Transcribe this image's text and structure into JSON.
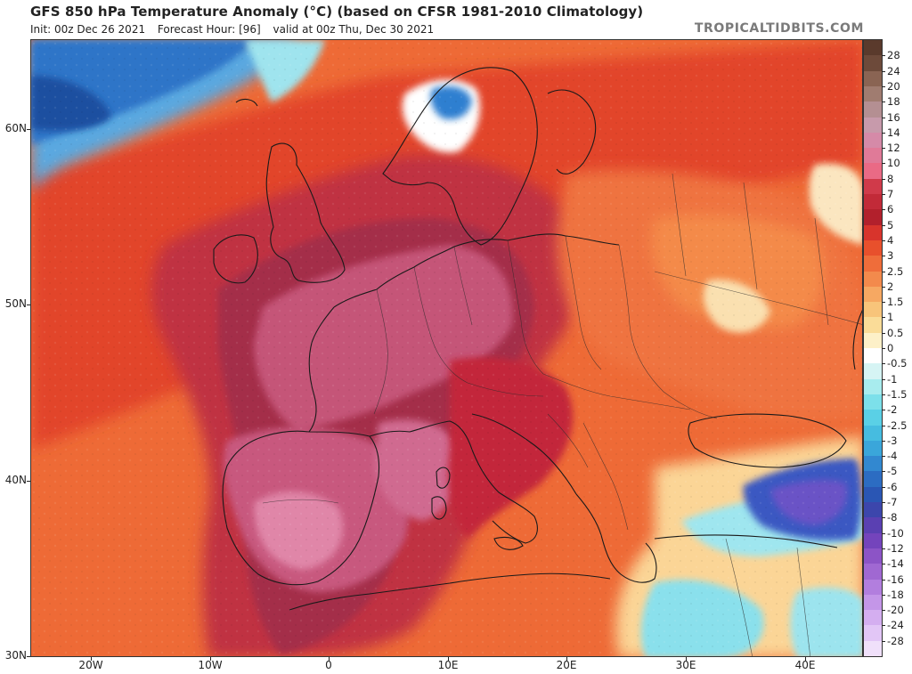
{
  "header": {
    "title": "GFS 850 hPa Temperature Anomaly (°C) (based on CFSR 1981-2010 Climatology)",
    "init": "Init: 00z Dec 26 2021",
    "forecast_hour": "Forecast Hour: [96]",
    "valid": "valid at 00z Thu, Dec 30 2021",
    "brand": "TROPICALTIDBITS.COM"
  },
  "axes": {
    "lat_labels": [
      "60N",
      "50N",
      "40N",
      "30N"
    ],
    "lon_labels": [
      "20W",
      "10W",
      "0",
      "10E",
      "20E",
      "30E",
      "40E"
    ]
  },
  "colorbar": {
    "labels": [
      "28",
      "24",
      "20",
      "18",
      "16",
      "14",
      "12",
      "10",
      "8",
      "7",
      "6",
      "5",
      "4",
      "3",
      "2.5",
      "2",
      "1.5",
      "1",
      "0.5",
      "0",
      "-0.5",
      "-1",
      "-1.5",
      "-2",
      "-2.5",
      "-3",
      "-4",
      "-5",
      "-6",
      "-7",
      "-8",
      "-10",
      "-12",
      "-14",
      "-16",
      "-18",
      "-20",
      "-24",
      "-28"
    ],
    "colors": [
      "#6d4a3a",
      "#8a6453",
      "#a07c70",
      "#b48f92",
      "#c79aab",
      "#d58aa8",
      "#e07a98",
      "#ea6a85",
      "#d03a4a",
      "#c22a38",
      "#b2202c",
      "#d8342c",
      "#e8502c",
      "#ef6d3a",
      "#f38a4c",
      "#f6a862",
      "#f8c47a",
      "#fadc98",
      "#fdf0c8",
      "#ffffff",
      "#d6f4f4",
      "#a8ecee",
      "#7ce0ea",
      "#5ad0e6",
      "#46bce0",
      "#3aa6da",
      "#3288d0",
      "#2c6cc2",
      "#2a56b4",
      "#3c46ac",
      "#5a40b2",
      "#7444bc",
      "#8c54c6",
      "#a068d2",
      "#b27ede",
      "#c496e8",
      "#d4aef0",
      "#e2c6f6",
      "#f0e0fa"
    ]
  },
  "map": {
    "colors": {
      "ocean_warm": "#e9562e",
      "background_orange": "#ef7a3c",
      "atlantic_cold": "#2f74c8",
      "deep_red": "#b8283a",
      "maroon": "#a42f4a",
      "pink": "#c9587c",
      "light_pink": "#dd7fa0",
      "cold_blue": "#3a58c2",
      "cyan": "#8fe3ee",
      "pale": "#fbe6c0"
    }
  }
}
